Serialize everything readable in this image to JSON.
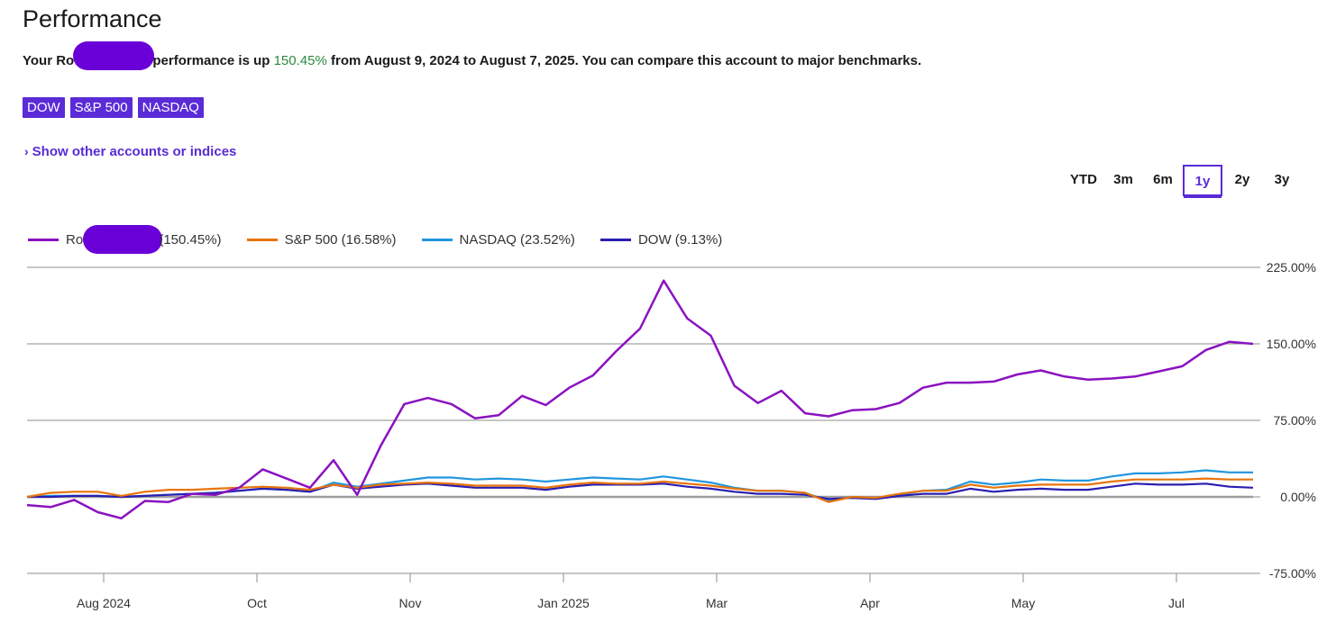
{
  "header": {
    "title": "Performance",
    "summary_prefix": "Your Rot",
    "summary_mid": " performance is up ",
    "summary_pct": "150.45%",
    "summary_suffix": " from August 9, 2024 to August 7, 2025. You can compare this account to major benchmarks."
  },
  "chips": [
    "DOW",
    "S&P 500",
    "NASDAQ"
  ],
  "show_other_label": "Show other accounts or indices",
  "ranges": [
    {
      "label": "YTD",
      "active": false
    },
    {
      "label": "3m",
      "active": false
    },
    {
      "label": "6m",
      "active": false
    },
    {
      "label": "1y",
      "active": true
    },
    {
      "label": "2y",
      "active": false
    },
    {
      "label": "3y",
      "active": false
    }
  ],
  "colors": {
    "account": "#8a12c0",
    "sp500": "#e8740c",
    "nasdaq": "#2196de",
    "dow": "#2a1eb0",
    "zero": "#9e9e9e",
    "grid": "#8c8c8c",
    "accent": "#5a2bd6"
  },
  "chart_data": {
    "type": "line",
    "ylim": [
      -75,
      225
    ],
    "y_ticks": [
      "225.00%",
      "150.00%",
      "75.00%",
      "0.00%",
      "-75.00%"
    ],
    "y_tick_values": [
      225,
      150,
      75,
      0,
      -75
    ],
    "x_tick_labels": [
      "Aug 2024",
      "Oct",
      "Nov",
      "Jan 2025",
      "Mar",
      "Apr",
      "May",
      "Jul"
    ],
    "x_tick_index": [
      5,
      15,
      25,
      35,
      45,
      55,
      65,
      75
    ],
    "series": [
      {
        "key": "account",
        "legend_prefix": "Rot",
        "legend_suffix": "(150.45%)",
        "values": [
          -8,
          -10,
          -3,
          -15,
          -21,
          -4,
          -5,
          3,
          2,
          9,
          27,
          18,
          9,
          36,
          2,
          50,
          91,
          97,
          91,
          77,
          80,
          99,
          90,
          107,
          119,
          143,
          165,
          212,
          175,
          158,
          109,
          92,
          104,
          82,
          79,
          85,
          86,
          92,
          107,
          112,
          112,
          113,
          120,
          124,
          118,
          115,
          116,
          118,
          123,
          128,
          144,
          152,
          150
        ]
      },
      {
        "key": "sp500",
        "name": "S&P 500 (16.58%)",
        "values": [
          0,
          4,
          5,
          5,
          1,
          5,
          7,
          7,
          8,
          9,
          10,
          9,
          7,
          12,
          9,
          12,
          13,
          14,
          13,
          11,
          11,
          11,
          9,
          12,
          14,
          13,
          13,
          15,
          13,
          11,
          8,
          6,
          6,
          4,
          -5,
          0,
          -1,
          3,
          6,
          6,
          12,
          9,
          11,
          12,
          12,
          12,
          15,
          17,
          17,
          17,
          18,
          17,
          17
        ]
      },
      {
        "key": "nasdaq",
        "name": "NASDAQ (23.52%)",
        "values": [
          0,
          1,
          1,
          1,
          0,
          1,
          2,
          3,
          4,
          6,
          8,
          7,
          5,
          14,
          10,
          13,
          16,
          19,
          19,
          17,
          18,
          17,
          15,
          17,
          19,
          18,
          17,
          20,
          17,
          14,
          9,
          6,
          6,
          4,
          -4,
          0,
          -1,
          2,
          6,
          7,
          15,
          12,
          14,
          17,
          16,
          16,
          20,
          23,
          23,
          24,
          26,
          24,
          24
        ]
      },
      {
        "key": "dow",
        "name": "DOW (9.13%)",
        "values": [
          0,
          0,
          1,
          1,
          0,
          1,
          2,
          3,
          4,
          6,
          8,
          7,
          5,
          12,
          8,
          10,
          12,
          13,
          11,
          9,
          9,
          9,
          7,
          10,
          12,
          12,
          12,
          13,
          10,
          8,
          5,
          3,
          3,
          2,
          -2,
          -1,
          -2,
          1,
          3,
          3,
          8,
          5,
          7,
          8,
          7,
          7,
          10,
          13,
          12,
          12,
          13,
          10,
          9
        ]
      }
    ]
  }
}
